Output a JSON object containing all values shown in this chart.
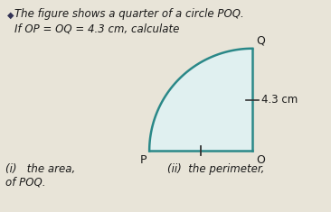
{
  "title_line1": "The figure shows a quarter of a circle POQ.",
  "title_line2": "If OP = OQ = 4.3 cm, calculate",
  "label_Q": "Q",
  "label_O": "O",
  "label_P": "P",
  "label_dim": "4.3 cm",
  "bottom_left1": "(i)   the area,",
  "bottom_left2": "of POQ.",
  "bottom_right": "(ii)  the perimeter,",
  "bg_color": "#e8e4d8",
  "shape_fill": "#e0f0f0",
  "shape_color": "#2a8888",
  "text_color": "#1a1a1a",
  "fig_width": 3.66,
  "fig_height": 2.35
}
